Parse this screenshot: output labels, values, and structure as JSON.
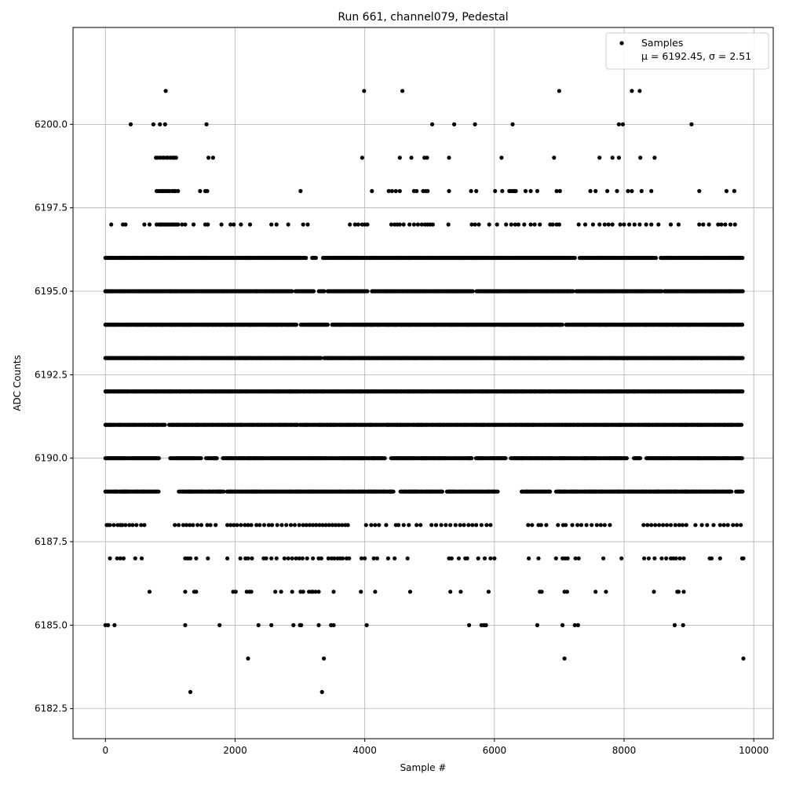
{
  "chart_data": {
    "type": "scatter",
    "title": "Run 661, channel079, Pedestal",
    "xlabel": "Sample #",
    "ylabel": "ADC Counts",
    "xlim": [
      -500,
      10300
    ],
    "ylim": [
      6181.6,
      6202.9
    ],
    "xticks": [
      0,
      2000,
      4000,
      6000,
      8000,
      10000
    ],
    "yticks": [
      6182.5,
      6185.0,
      6187.5,
      6190.0,
      6192.5,
      6195.0,
      6197.5,
      6200.0
    ],
    "grid": true,
    "legend": {
      "placement": "top-right",
      "entry": "Samples",
      "stats": "μ = 6192.45, σ = 2.51"
    },
    "series": [
      {
        "color": "#000000",
        "marker": "dot",
        "levels": [
          {
            "y": 6201,
            "x": [
              930,
              3990,
              4580,
              7000,
              8120,
              8240
            ]
          },
          {
            "y": 6200,
            "x": [
              390,
              740,
              840,
              920,
              1560,
              5040,
              5380,
              5700,
              6280,
              7920,
              7980,
              9040
            ]
          },
          {
            "y": 6199,
            "x": [
              780,
              800,
              840,
              880,
              900,
              940,
              960,
              1000,
              1040,
              1060,
              1090,
              1590,
              1660,
              3960,
              4540,
              4720,
              4920,
              4960,
              5300,
              6110,
              6920,
              7620,
              7820,
              7920,
              8250,
              8470
            ]
          },
          {
            "y": 6198,
            "x": [
              790,
              820,
              850,
              880,
              900,
              930,
              960,
              990,
              1030,
              1060,
              1080,
              1120,
              1460,
              1540,
              1570,
              3010,
              4110,
              4370,
              4420,
              4480,
              4540,
              4760,
              4800,
              4900,
              4940,
              4970,
              5300,
              5640,
              5720,
              6010,
              6120,
              6230,
              6260,
              6290,
              6310,
              6330,
              6480,
              6560,
              6660,
              6960,
              7010,
              7480,
              7560,
              7740,
              7890,
              8060,
              8120,
              8270,
              8420,
              9160,
              9580,
              9700
            ]
          },
          {
            "y": 6197,
            "x": [
              90,
              270,
              310,
              600,
              680,
              790,
              830,
              850,
              870,
              900,
              930,
              950,
              980,
              1010,
              1040,
              1060,
              1090,
              1120,
              1180,
              1230,
              1360,
              1540,
              1580,
              1790,
              1930,
              1980,
              2090,
              2230,
              2560,
              2640,
              2820,
              3050,
              3120,
              3770,
              3850,
              3900,
              3960,
              4000,
              4040,
              4410,
              4460,
              4500,
              4540,
              4600,
              4690,
              4760,
              4820,
              4880,
              4930,
              4970,
              5010,
              5050,
              5290,
              5650,
              5700,
              5760,
              5920,
              6040,
              6180,
              6260,
              6320,
              6370,
              6460,
              6560,
              6620,
              6700,
              6860,
              6900,
              6960,
              7000,
              7300,
              7400,
              7520,
              7620,
              7700,
              7760,
              7820,
              7940,
              8000,
              8080,
              8160,
              8240,
              8340,
              8420,
              8530,
              8720,
              8840,
              9160,
              9220,
              9310,
              9450,
              9500,
              9560,
              9640,
              9710
            ]
          }
        ],
        "dense_levels": [
          {
            "y": 6196,
            "x_range": [
              0,
              9830
            ],
            "gaps": [
              [
                3100,
                3170
              ],
              [
                3250,
                3350
              ],
              [
                7250,
                7300
              ],
              [
                8500,
                8560
              ]
            ]
          },
          {
            "y": 6195,
            "x_range": [
              0,
              9830
            ],
            "gaps": [
              [
                2880,
                2930
              ],
              [
                3220,
                3280
              ],
              [
                3380,
                3420
              ],
              [
                4050,
                4100
              ],
              [
                5670,
                5710
              ],
              [
                7220,
                7260
              ],
              [
                8580,
                8620
              ]
            ]
          },
          {
            "y": 6194,
            "x_range": [
              0,
              9830
            ],
            "gaps": [
              [
                2950,
                3010
              ],
              [
                3430,
                3480
              ],
              [
                7050,
                7090
              ]
            ]
          },
          {
            "y": 6193,
            "x_range": [
              0,
              9830
            ],
            "gaps": [
              [
                3330,
                3370
              ]
            ]
          },
          {
            "y": 6192,
            "x_range": [
              0,
              9830
            ],
            "gaps": []
          },
          {
            "y": 6191,
            "x_range": [
              0,
              9830
            ],
            "gaps": [
              [
                930,
                980
              ],
              [
                2970,
                3000
              ]
            ]
          },
          {
            "y": 6190,
            "x_range": [
              0,
              9830
            ],
            "gaps": [
              [
                830,
                1000
              ],
              [
                1480,
                1540
              ],
              [
                1730,
                1810
              ],
              [
                4320,
                4400
              ],
              [
                5660,
                5700
              ],
              [
                6180,
                6250
              ],
              [
                8050,
                8150
              ],
              [
                8250,
                8330
              ]
            ]
          },
          {
            "y": 6189,
            "x_range": [
              0,
              9830
            ],
            "gaps": [
              [
                820,
                1130
              ],
              [
                1830,
                1860
              ],
              [
                4450,
                4550
              ],
              [
                5200,
                5250
              ],
              [
                6060,
                6420
              ],
              [
                6870,
                6950
              ],
              [
                9660,
                9720
              ]
            ]
          }
        ],
        "levels_sparse_band": [
          {
            "y": 6188,
            "x": [
              20,
              40,
              70,
              130,
              190,
              230,
              260,
              310,
              370,
              420,
              480,
              550,
              600,
              1070,
              1130,
              1200,
              1250,
              1300,
              1350,
              1420,
              1480,
              1570,
              1620,
              1700,
              1880,
              1930,
              1980,
              2030,
              2090,
              2150,
              2200,
              2250,
              2330,
              2380,
              2450,
              2520,
              2570,
              2650,
              2720,
              2790,
              2860,
              2920,
              2990,
              3050,
              3100,
              3150,
              3200,
              3250,
              3300,
              3350,
              3400,
              3450,
              3500,
              3550,
              3600,
              3650,
              3700,
              3740,
              4020,
              4100,
              4160,
              4220,
              4330,
              4480,
              4520,
              4600,
              4680,
              4800,
              4860,
              5030,
              5100,
              5180,
              5250,
              5320,
              5400,
              5470,
              5530,
              5600,
              5660,
              5720,
              5800,
              5880,
              5940,
              6520,
              6580,
              6680,
              6720,
              6800,
              6980,
              7060,
              7100,
              7200,
              7280,
              7340,
              7420,
              7500,
              7580,
              7640,
              7700,
              7780,
              8300,
              8360,
              8420,
              8480,
              8540,
              8600,
              8660,
              8720,
              8790,
              8850,
              8900,
              8960,
              9100,
              9200,
              9280,
              9380,
              9480,
              9540,
              9600,
              9680,
              9740,
              9800
            ]
          },
          {
            "y": 6187,
            "x": [
              70,
              180,
              230,
              280,
              460,
              560,
              1230,
              1270,
              1310,
              1400,
              1580,
              1880,
              2080,
              2160,
              2200,
              2260,
              2440,
              2480,
              2560,
              2640,
              2760,
              2820,
              2880,
              2940,
              2990,
              3040,
              3110,
              3200,
              3290,
              3330,
              3440,
              3490,
              3530,
              3580,
              3620,
              3660,
              3720,
              3760,
              3950,
              4000,
              4140,
              4190,
              4360,
              4460,
              4660,
              5300,
              5340,
              5450,
              5550,
              5580,
              5750,
              5850,
              5940,
              6000,
              6530,
              6680,
              6950,
              7050,
              7090,
              7130,
              7250,
              7300,
              7680,
              7960,
              8310,
              8380,
              8470,
              8580,
              8650,
              8720,
              8760,
              8800,
              8860,
              8920,
              9320,
              9350,
              9480,
              9820,
              9840
            ]
          },
          {
            "y": 6186,
            "x": [
              680,
              1230,
              1370,
              1400,
              1970,
              2010,
              2180,
              2220,
              2250,
              2620,
              2710,
              2880,
              3010,
              3050,
              3140,
              3180,
              3200,
              3240,
              3290,
              3520,
              3940,
              4160,
              4700,
              5320,
              5480,
              5910,
              6700,
              6730,
              7080,
              7120,
              7560,
              7720,
              8460,
              8820,
              8840,
              8920
            ]
          },
          {
            "y": 6185,
            "x": [
              0,
              40,
              140,
              1230,
              1760,
              2360,
              2560,
              2900,
              3000,
              3020,
              3290,
              3480,
              3520,
              4030,
              5610,
              5800,
              5840,
              5870,
              6660,
              7050,
              7240,
              7290,
              8780,
              8910
            ]
          },
          {
            "y": 6184,
            "x": [
              2200,
              3370,
              7080,
              9840
            ]
          },
          {
            "y": 6183,
            "x": [
              1310,
              3340
            ]
          }
        ]
      }
    ]
  }
}
